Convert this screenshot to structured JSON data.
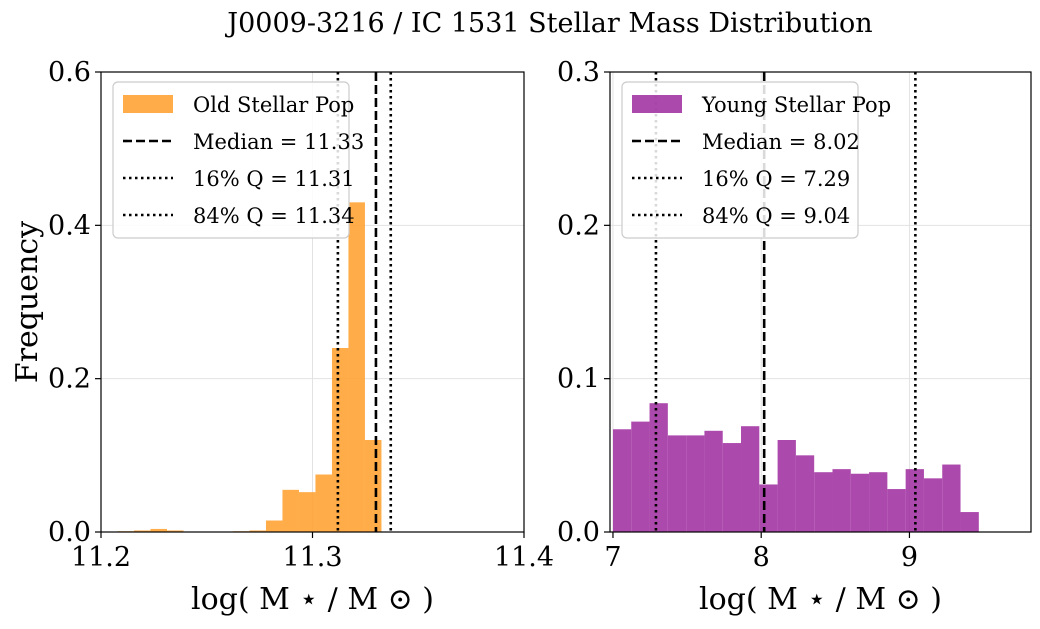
{
  "title": "J0009-3216 / IC 1531 Stellar Mass Distribution",
  "chart_data": [
    {
      "type": "bar",
      "ylabel": "Frequency",
      "xlabel": "log( M ⋆ / M ⊙ )",
      "xlim": [
        11.2,
        11.4
      ],
      "ylim": [
        0.0,
        0.6
      ],
      "xticks": [
        11.2,
        11.3,
        11.4
      ],
      "xtick_labels": [
        "11.2",
        "11.3",
        "11.4"
      ],
      "yticks": [
        0.0,
        0.2,
        0.4,
        0.6
      ],
      "ytick_labels": [
        "0.0",
        "0.2",
        "0.4",
        "0.6"
      ],
      "grid": true,
      "legend_position": "top-left",
      "bar_color": "#ffa030",
      "bins": {
        "left": [
          11.2078,
          11.2156,
          11.2234,
          11.2312,
          11.239,
          11.2468,
          11.2546,
          11.2624,
          11.2702,
          11.278,
          11.2858,
          11.2936,
          11.3014,
          11.3092,
          11.317,
          11.3248,
          11.3326,
          11.3404
        ],
        "right": [
          11.2156,
          11.2234,
          11.2312,
          11.239,
          11.2468,
          11.2546,
          11.2624,
          11.2702,
          11.278,
          11.2858,
          11.2936,
          11.3014,
          11.3092,
          11.317,
          11.3248,
          11.3326,
          11.3404,
          11.3482
        ],
        "values": [
          0.001,
          0.002,
          0.004,
          0.002,
          0.0,
          0.0,
          0.0,
          0.001,
          0.002,
          0.015,
          0.055,
          0.052,
          0.075,
          0.24,
          0.43,
          0.12,
          0.0,
          0.0
        ]
      },
      "series": [
        {
          "name": "Old Stellar Pop",
          "kind": "hist"
        },
        {
          "name": "Median = 11.33",
          "kind": "vline",
          "style": "dashed",
          "x": 11.33
        },
        {
          "name": "16% Q = 11.31",
          "kind": "vline",
          "style": "dotted",
          "x": 11.312
        },
        {
          "name": "84% Q = 11.34",
          "kind": "vline",
          "style": "dotted",
          "x": 11.337
        }
      ]
    },
    {
      "type": "bar",
      "xlabel": "log( M ⋆ / M ⊙ )",
      "xlim": [
        6.98,
        9.82
      ],
      "ylim": [
        0.0,
        0.3
      ],
      "xticks": [
        7,
        8,
        9
      ],
      "xtick_labels": [
        "7",
        "8",
        "9"
      ],
      "yticks": [
        0.0,
        0.1,
        0.2,
        0.3
      ],
      "ytick_labels": [
        "0.0",
        "0.1",
        "0.2",
        "0.3"
      ],
      "grid": true,
      "legend_position": "top-left",
      "bar_color": "#a030a0",
      "bins": {
        "start": 7.0,
        "width": 0.1234,
        "values": [
          0.067,
          0.072,
          0.084,
          0.063,
          0.063,
          0.066,
          0.058,
          0.069,
          0.031,
          0.06,
          0.05,
          0.039,
          0.041,
          0.038,
          0.039,
          0.028,
          0.041,
          0.035,
          0.044,
          0.013
        ]
      },
      "series": [
        {
          "name": "Young Stellar Pop",
          "kind": "hist"
        },
        {
          "name": "Median = 8.02",
          "kind": "vline",
          "style": "dashed",
          "x": 8.02
        },
        {
          "name": "16% Q = 7.29",
          "kind": "vline",
          "style": "dotted",
          "x": 7.29
        },
        {
          "name": "84% Q = 9.04",
          "kind": "vline",
          "style": "dotted",
          "x": 9.04
        }
      ]
    }
  ]
}
